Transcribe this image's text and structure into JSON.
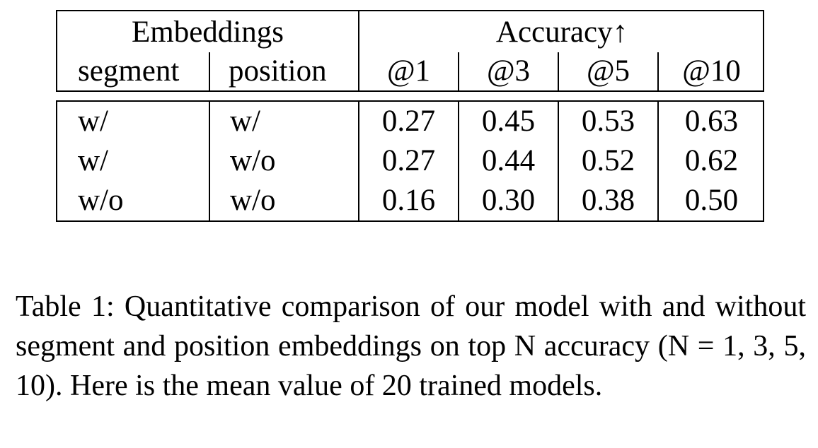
{
  "table": {
    "group_headers": {
      "embeddings": "Embeddings",
      "accuracy": "Accuracy↑"
    },
    "columns": [
      "segment",
      "position",
      "@1",
      "@3",
      "@5",
      "@10"
    ],
    "rows": [
      [
        "w/",
        "w/",
        "0.27",
        "0.45",
        "0.53",
        "0.63"
      ],
      [
        "w/",
        "w/o",
        "0.27",
        "0.44",
        "0.52",
        "0.62"
      ],
      [
        "w/o",
        "w/o",
        "0.16",
        "0.30",
        "0.38",
        "0.50"
      ]
    ]
  },
  "caption": "Table 1: Quantitative comparison of our model with and without segment and position embeddings on top N accuracy (N = 1, 3, 5, 10). Here is the mean value of 20 trained models."
}
